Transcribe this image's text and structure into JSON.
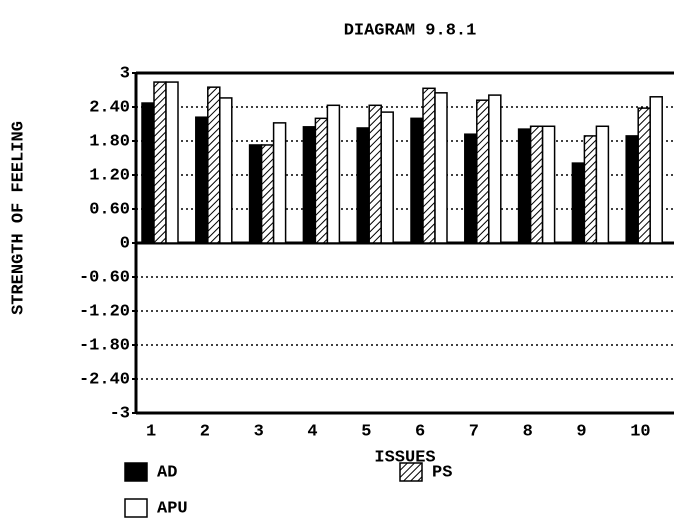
{
  "chart_data": {
    "type": "bar",
    "title": "DIAGRAM 9.8.1",
    "x_label": "ISSUES",
    "y_label": "STRENGTH OF FEELING",
    "categories": [
      "1",
      "2",
      "3",
      "4",
      "5",
      "6",
      "7",
      "8",
      "9",
      "10"
    ],
    "series": [
      {
        "name": "AD",
        "color": "#000000",
        "values": [
          2.47,
          2.22,
          1.73,
          2.05,
          2.03,
          2.2,
          1.92,
          2.01,
          1.41,
          1.89
        ]
      },
      {
        "name": "PS",
        "color": "#000000",
        "pattern": "hatch",
        "values": [
          2.84,
          2.75,
          1.73,
          2.2,
          2.43,
          2.73,
          2.52,
          2.06,
          1.89,
          2.38
        ]
      },
      {
        "name": "APU",
        "color": "#ffffff",
        "values": [
          2.84,
          2.56,
          2.12,
          2.43,
          2.31,
          2.65,
          2.61,
          2.06,
          2.06,
          2.58
        ]
      }
    ],
    "ylim": [
      -3,
      3
    ],
    "yticks": [
      3,
      {
        "value": 2.4,
        "label": "2.40"
      },
      {
        "value": 1.8,
        "label": "1.80"
      },
      {
        "value": 1.2,
        "label": "1.20"
      },
      {
        "value": 0.6,
        "label": "0.60"
      },
      0,
      {
        "value": -0.6,
        "label": "-0.60"
      },
      {
        "value": -1.2,
        "label": "-1.20"
      },
      {
        "value": -1.8,
        "label": "-1.80"
      },
      {
        "value": -2.4,
        "label": "-2.40"
      },
      -3
    ],
    "grid": true
  }
}
